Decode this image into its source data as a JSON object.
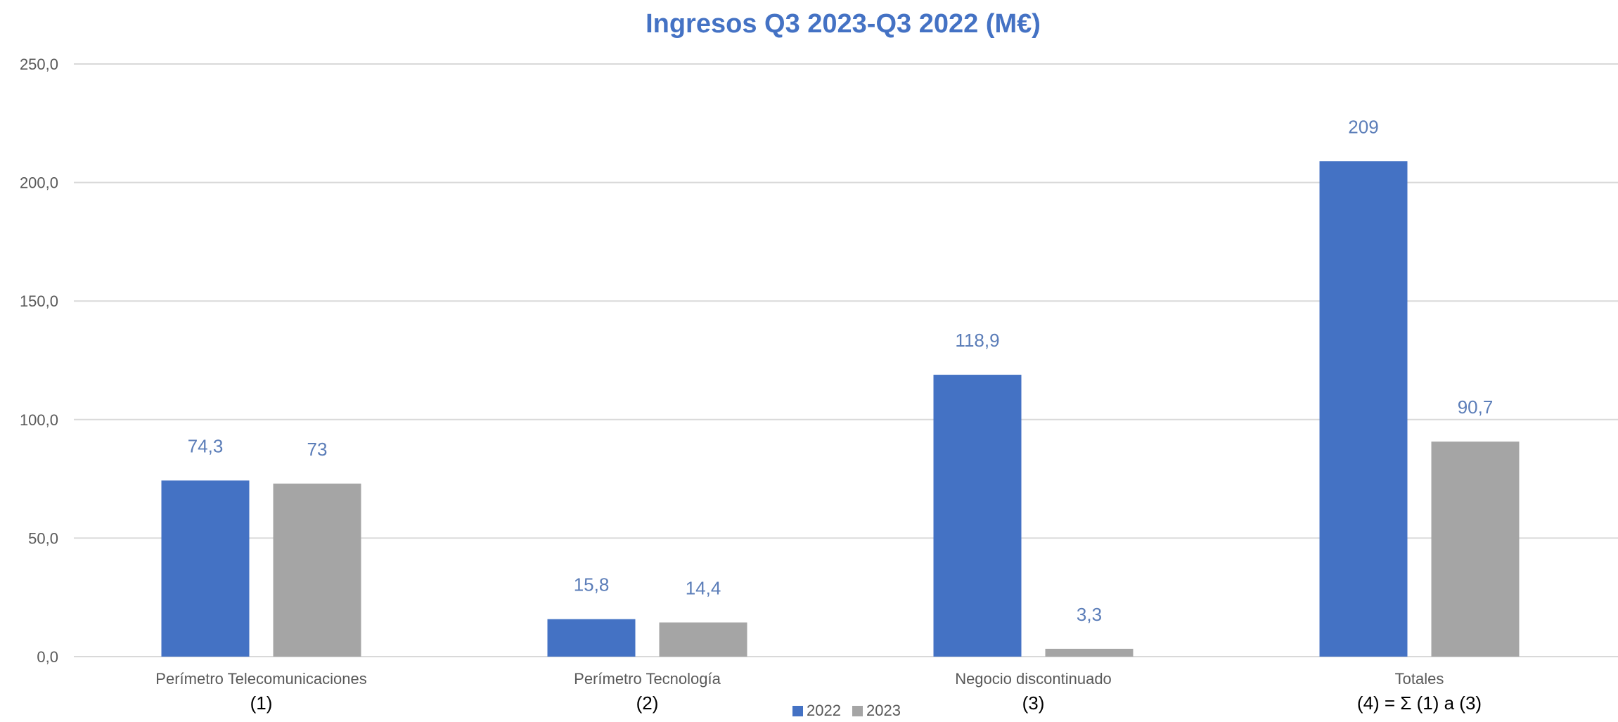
{
  "chart_data": {
    "type": "bar",
    "title": "Ingresos Q3 2023-Q3 2022  (M€)",
    "categories": [
      "Perímetro Telecomunicaciones",
      "Perímetro Tecnología",
      "Negocio discontinuado",
      "Totales"
    ],
    "category_notes": [
      "(1)",
      "(2)",
      "(3)",
      "(4) = Σ (1) a (3)"
    ],
    "series": [
      {
        "name": "2022",
        "values": [
          74.3,
          15.8,
          118.9,
          209
        ],
        "labels": [
          "74,3",
          "15,8",
          "118,9",
          "209"
        ],
        "color": "#4472C4"
      },
      {
        "name": "2023",
        "values": [
          73,
          14.4,
          3.3,
          90.7
        ],
        "labels": [
          "73",
          "14,4",
          "3,3",
          "90,7"
        ],
        "color": "#A5A5A5"
      }
    ],
    "ylim": [
      0,
      250
    ],
    "yticks": [
      "0,0",
      "50,0",
      "100,0",
      "150,0",
      "200,0",
      "250,0"
    ],
    "grid": true,
    "legend_position": "bottom",
    "colors": {
      "title": "#4472C4",
      "label": "#5B7DB8",
      "grid": "#D9D9D9",
      "tick_text": "#595959"
    }
  }
}
